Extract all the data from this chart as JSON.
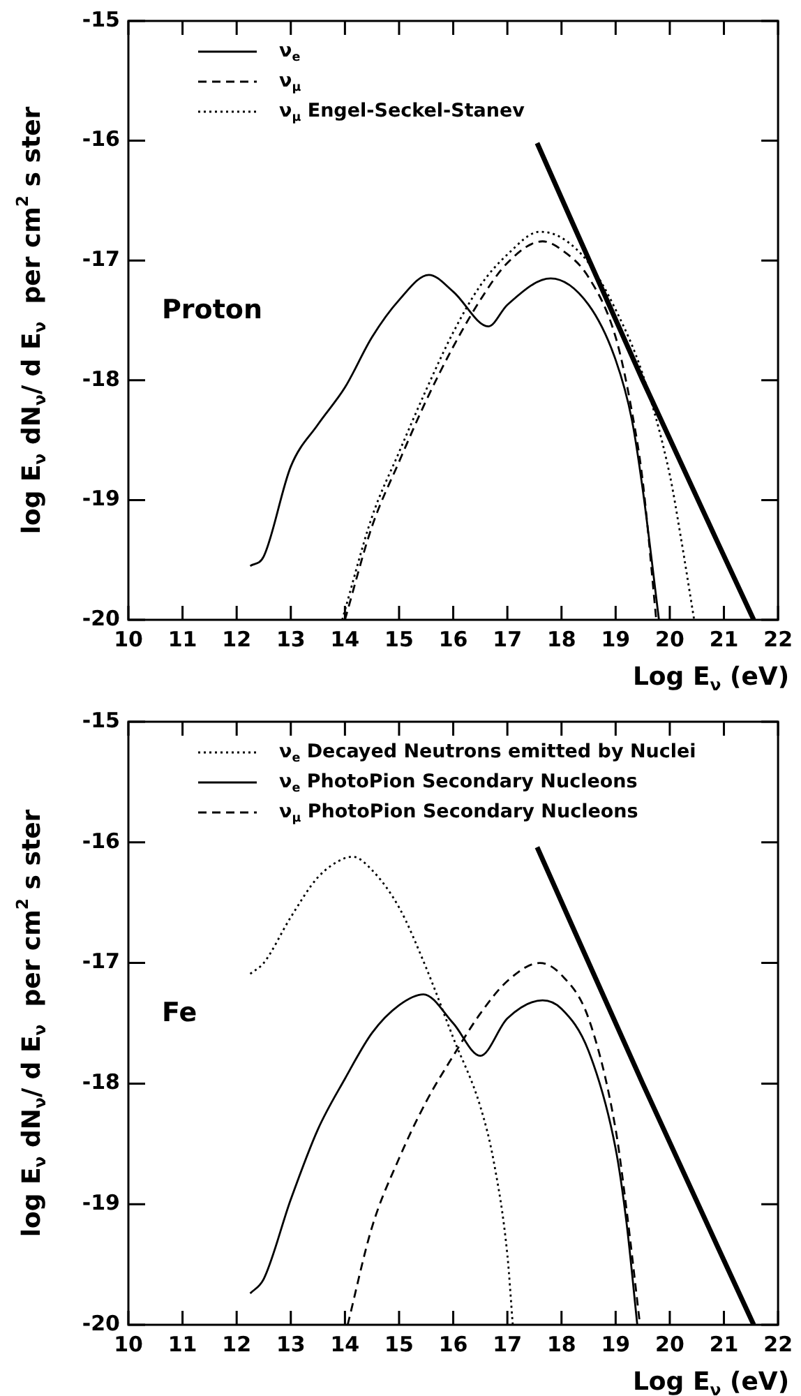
{
  "chart_data": [
    {
      "type": "line",
      "ylabel": "log E$_{ν}$ dN$_{ν}$/ d E$_{ν}$  per cm$^{2}$ s ster",
      "xlabel": "Log E$_{ν}$ (eV)",
      "xlim": [
        10,
        22
      ],
      "ylim": [
        -20,
        -15
      ],
      "xticks": [
        10,
        11,
        12,
        13,
        14,
        15,
        16,
        17,
        18,
        19,
        20,
        21,
        22
      ],
      "yticks": [
        -20,
        -19,
        -18,
        -17,
        -16,
        -15
      ],
      "legend": "top left",
      "annotations": [
        "Proton"
      ],
      "series": [
        {
          "name": "ν$_{e}$",
          "color": "#000000",
          "line_style": "solid",
          "x": [
            12.25,
            12.5,
            13,
            13.5,
            14,
            14.5,
            15,
            15.55,
            16,
            16.65,
            17,
            17.8,
            18.5,
            19,
            19.3,
            19.5,
            19.8
          ],
          "values": [
            -19.55,
            -19.47,
            -18.72,
            -18.37,
            -18.06,
            -17.64,
            -17.33,
            -17.12,
            -17.26,
            -17.55,
            -17.37,
            -17.15,
            -17.37,
            -17.83,
            -18.33,
            -18.91,
            -20
          ]
        },
        {
          "name": "ν$_{μ}$",
          "color": "#000000",
          "line_style": "dashed",
          "x": [
            14,
            14.5,
            15,
            15.5,
            16,
            16.5,
            17,
            17.65,
            18,
            18.5,
            19,
            19.3,
            19.5,
            19.75
          ],
          "values": [
            -20,
            -19.22,
            -18.68,
            -18.17,
            -17.72,
            -17.33,
            -17.02,
            -16.84,
            -16.91,
            -17.14,
            -17.64,
            -18.26,
            -18.84,
            -20
          ]
        },
        {
          "name": "ν$_{μ}$ Engel-Seckel-Stanev",
          "color": "#000000",
          "line_style": "dotted",
          "x": [
            13.95,
            14.5,
            15,
            15.5,
            16,
            16.5,
            17,
            17.6,
            18,
            18.5,
            19,
            19.5,
            20,
            20.2,
            20.45
          ],
          "values": [
            -20,
            -19.14,
            -18.6,
            -18.08,
            -17.6,
            -17.21,
            -16.95,
            -16.76,
            -16.81,
            -17.02,
            -17.41,
            -17.95,
            -18.79,
            -19.3,
            -20
          ]
        },
        {
          "color": "#000000",
          "line_style": "solid",
          "x": [
            17.55,
            19.5,
            21.55
          ],
          "values": [
            -16.02,
            -18.0,
            -20
          ]
        }
      ]
    },
    {
      "type": "line",
      "ylabel": "log E$_{ν}$ dN$_{ν}$/ d E$_{ν}$  per cm$^{2}$ s ster",
      "xlabel": "Log E$_{ν}$ (eV)",
      "xlim": [
        10,
        22
      ],
      "ylim": [
        -20,
        -15
      ],
      "xticks": [
        10,
        11,
        12,
        13,
        14,
        15,
        16,
        17,
        18,
        19,
        20,
        21,
        22
      ],
      "yticks": [
        -20,
        -19,
        -18,
        -17,
        -16,
        -15
      ],
      "legend": "top left",
      "annotations": [
        "Fe"
      ],
      "series": [
        {
          "name": "ν$_{e}$ Decayed Neutrons emitted by Nuclei",
          "color": "#000000",
          "line_style": "dotted",
          "x": [
            12.25,
            12.5,
            13,
            13.5,
            14,
            14.15,
            14.5,
            15,
            15.5,
            16,
            16.5,
            16.75,
            17,
            17.1
          ],
          "values": [
            -17.09,
            -17.0,
            -16.62,
            -16.29,
            -16.13,
            -16.12,
            -16.23,
            -16.54,
            -17.04,
            -17.62,
            -18.19,
            -18.65,
            -19.42,
            -20
          ]
        },
        {
          "name": "ν$_{e}$ PhotoPion Secondary Nucleons",
          "color": "#000000",
          "line_style": "solid",
          "x": [
            12.25,
            12.5,
            13,
            13.5,
            14,
            14.5,
            15,
            15.45,
            16,
            16.5,
            17,
            17.65,
            18,
            18.5,
            19,
            19.2,
            19.4
          ],
          "values": [
            -19.74,
            -19.62,
            -18.96,
            -18.38,
            -17.96,
            -17.58,
            -17.35,
            -17.26,
            -17.5,
            -17.77,
            -17.46,
            -17.31,
            -17.38,
            -17.73,
            -18.54,
            -19.15,
            -20
          ]
        },
        {
          "name": "ν$_{μ}$ PhotoPion Secondary Nucleons",
          "color": "#000000",
          "line_style": "dashed",
          "x": [
            14.05,
            14.5,
            15,
            15.5,
            16,
            16.5,
            17,
            17.6,
            18,
            18.5,
            19,
            19.2,
            19.45
          ],
          "values": [
            -20,
            -19.19,
            -18.62,
            -18.15,
            -17.77,
            -17.42,
            -17.15,
            -17.0,
            -17.1,
            -17.46,
            -18.38,
            -19.04,
            -20
          ]
        },
        {
          "color": "#000000",
          "line_style": "solid",
          "x": [
            17.55,
            19.5,
            21.55
          ],
          "values": [
            -16.04,
            -18.0,
            -20
          ]
        }
      ]
    }
  ]
}
